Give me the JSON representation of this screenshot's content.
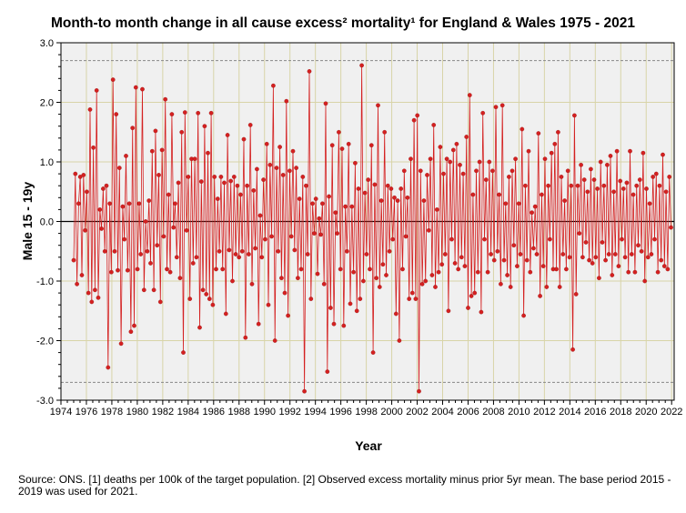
{
  "chart_data": {
    "type": "line",
    "title": "Month-to month change in all cause excess² mortality¹  for England & Wales 1975 - 2021",
    "xlabel": "Year",
    "ylabel": "Male 15 - 19y",
    "xlim": [
      1974,
      2022.2
    ],
    "ylim": [
      -3.0,
      3.0
    ],
    "x_ticks": [
      1974,
      1976,
      1978,
      1980,
      1982,
      1984,
      1986,
      1988,
      1990,
      1992,
      1994,
      1996,
      1998,
      2000,
      2002,
      2004,
      2006,
      2008,
      2010,
      2012,
      2014,
      2016,
      2018,
      2020,
      2022
    ],
    "y_ticks": [
      -3.0,
      -2.0,
      -1.0,
      0.0,
      1.0,
      2.0,
      3.0
    ],
    "reference_lines": [
      2.7,
      -2.7
    ],
    "zero_line": 0.0,
    "grid": true,
    "series_color": "#d42020",
    "series": [
      {
        "values": [
          -0.65,
          0.8,
          -1.05,
          0.3,
          0.75,
          -0.9,
          0.78,
          -0.15,
          0.5,
          -1.2,
          1.88,
          -1.35,
          1.24,
          -1.15,
          2.2,
          -1.28,
          0.2,
          -0.12,
          0.55,
          -0.5,
          0.6,
          -2.45,
          0.3,
          -0.85,
          2.38,
          -0.5,
          1.8,
          -0.82,
          0.9,
          -2.05,
          0.25,
          -0.3,
          1.1,
          -0.82,
          0.3,
          -1.85,
          1.57,
          -1.75,
          2.25,
          -0.8,
          0.3,
          -0.55,
          2.22,
          -1.15,
          0.0,
          -0.5,
          0.35,
          -0.7,
          1.18,
          -1.15,
          1.52,
          -0.4,
          0.78,
          -1.35,
          1.2,
          -0.25,
          2.05,
          -0.8,
          0.45,
          -0.85,
          1.8,
          -0.1,
          0.3,
          -0.6,
          0.65,
          -0.95,
          1.5,
          -2.2,
          1.83,
          -0.15,
          0.75,
          -1.3,
          1.05,
          -0.7,
          1.05,
          -0.6,
          1.82,
          -1.78,
          0.67,
          -1.15,
          1.6,
          -1.22,
          1.15,
          -1.3,
          1.82,
          -1.4,
          0.75,
          -0.8,
          0.38,
          -0.5,
          0.75,
          -0.8,
          0.65,
          -1.55,
          1.45,
          -0.48,
          0.68,
          -1.0,
          0.75,
          -0.55,
          0.6,
          -0.6,
          0.45,
          -0.5,
          1.38,
          -1.95,
          0.6,
          -0.55,
          1.62,
          -1.05,
          0.52,
          -0.45,
          0.88,
          -1.72,
          0.1,
          -0.6,
          0.7,
          -0.3,
          1.3,
          -1.4,
          0.95,
          -0.25,
          2.28,
          -2.0,
          0.9,
          -0.5,
          1.25,
          -0.95,
          0.78,
          -1.2,
          2.02,
          -1.58,
          0.85,
          -0.25,
          1.18,
          -0.48,
          0.9,
          -0.95,
          0.38,
          -0.8,
          0.75,
          -2.85,
          0.6,
          -0.55,
          2.52,
          -1.3,
          0.3,
          -0.2,
          0.38,
          -0.88,
          0.05,
          -0.22,
          0.3,
          -1.05,
          1.98,
          -2.52,
          0.42,
          -1.45,
          1.28,
          -1.72,
          0.15,
          -0.2,
          1.5,
          -0.8,
          1.22,
          -1.75,
          0.25,
          -0.5,
          1.3,
          -1.38,
          0.25,
          -0.85,
          0.98,
          -1.5,
          0.55,
          -1.3,
          2.62,
          -1.0,
          0.48,
          -0.55,
          0.7,
          -0.8,
          1.28,
          -2.2,
          0.62,
          -0.95,
          1.95,
          -1.1,
          0.35,
          -0.72,
          1.5,
          -0.9,
          0.6,
          -0.5,
          0.55,
          -0.3,
          0.4,
          -1.55,
          0.35,
          -2.0,
          0.55,
          -0.8,
          0.85,
          -0.25,
          0.4,
          -1.3,
          1.05,
          -1.2,
          1.7,
          -1.3,
          1.78,
          -2.85,
          0.85,
          -1.05,
          0.35,
          -1.0,
          0.78,
          -0.15,
          1.05,
          -0.9,
          1.62,
          -1.1,
          0.2,
          -0.85,
          1.25,
          -0.72,
          0.8,
          -0.55,
          1.05,
          -1.5,
          1.0,
          -0.3,
          1.2,
          -0.7,
          1.3,
          -0.8,
          0.95,
          -0.6,
          0.8,
          -0.75,
          1.42,
          -1.45,
          2.12,
          -1.25,
          0.45,
          -1.2,
          0.85,
          -0.85,
          1.0,
          -1.52,
          1.82,
          -0.3,
          0.7,
          -0.85,
          1.0,
          -0.55,
          0.85,
          -0.65,
          1.92,
          -0.5,
          0.45,
          -1.05,
          1.95,
          -0.65,
          0.3,
          -0.9,
          0.75,
          -1.1,
          0.85,
          -0.4,
          1.05,
          -0.75,
          0.3,
          -0.55,
          1.55,
          -1.58,
          0.6,
          -0.65,
          1.18,
          -0.85,
          0.15,
          -0.45,
          0.25,
          -0.55,
          1.48,
          -1.25,
          0.45,
          -0.75,
          1.05,
          -1.1,
          0.6,
          -0.3,
          1.15,
          -0.8,
          1.3,
          -0.8,
          1.5,
          -1.1,
          0.75,
          -0.55,
          0.35,
          -0.8,
          0.85,
          -0.6,
          0.6,
          -2.15,
          1.78,
          -1.22,
          0.6,
          -0.2,
          0.95,
          -0.6,
          0.7,
          -0.35,
          0.5,
          -0.65,
          0.88,
          -0.7,
          0.7,
          -0.6,
          0.55,
          -0.95,
          1.0,
          -0.35,
          0.6,
          -0.65,
          0.95,
          -0.55,
          1.1,
          -0.9,
          0.5,
          -0.55,
          1.18,
          -0.75,
          0.68,
          -0.3,
          0.55,
          -0.6,
          0.65,
          -0.85,
          1.18,
          -0.55,
          0.45,
          -0.85,
          0.6,
          -0.4,
          0.7,
          -0.5,
          1.15,
          -1.0,
          0.55,
          -0.6,
          0.3,
          -0.55,
          0.75,
          -0.3,
          0.8,
          -0.85,
          0.6,
          -0.65,
          1.12,
          -0.75,
          0.5,
          -0.8,
          0.75,
          -0.1
        ]
      }
    ]
  },
  "source_note": "Source: ONS. [1] deaths per 100k of the target population. [2] Observed excess mortality minus prior 5yr mean. The base period 2015 - 2019 was used for 2021."
}
